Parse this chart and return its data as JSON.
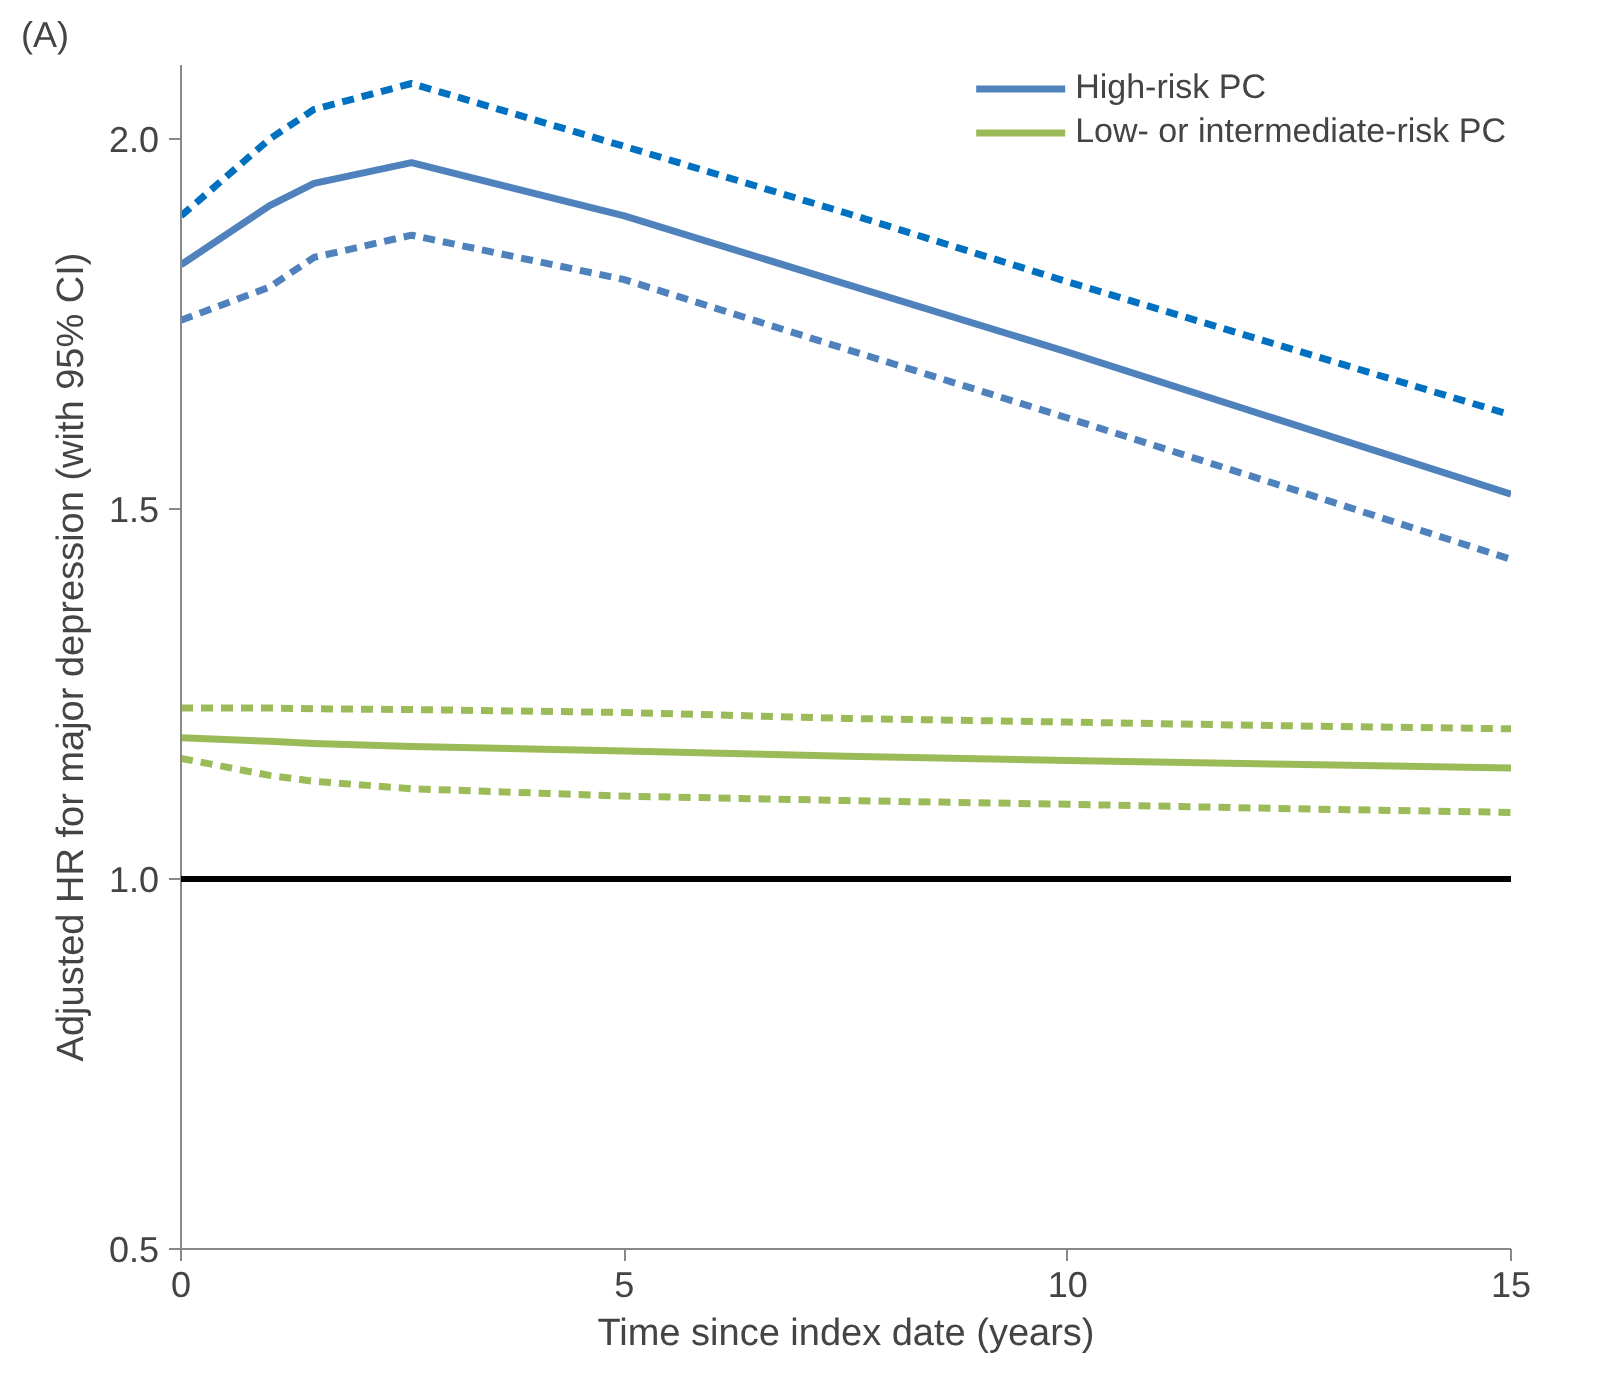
{
  "chart_data": {
    "type": "line",
    "xlabel": "Time since index date (years)",
    "ylabel": "Adjusted HR for major depression (with 95% CI)",
    "annotations": [
      "(A)"
    ],
    "xlim": [
      0,
      15
    ],
    "ylim": [
      0.5,
      2.1
    ],
    "xticks": [
      0,
      5,
      10,
      15
    ],
    "yticks": [
      {
        "value": 0.5,
        "label": "0.5"
      },
      {
        "value": 1.0,
        "label": "1.0"
      },
      {
        "value": 1.5,
        "label": "1.5"
      },
      {
        "value": 2.0,
        "label": "2.0"
      }
    ],
    "x": [
      0,
      1,
      1.5,
      2.6,
      5,
      7.5,
      10,
      12.5,
      15
    ],
    "series": [
      {
        "name": "High-risk PC",
        "color": "#4f81bd",
        "line_style": "solid",
        "values": [
          1.83,
          1.91,
          1.94,
          1.968,
          1.896,
          1.804,
          1.712,
          1.616,
          1.52
        ]
      },
      {
        "color": "#0070c0",
        "line_style": "dashed",
        "values": [
          1.896,
          2.0,
          2.04,
          2.075,
          1.99,
          1.9,
          1.807,
          1.717,
          1.627
        ]
      },
      {
        "color": "#4f81bd",
        "line_style": "dashed",
        "values": [
          1.755,
          1.8,
          1.84,
          1.87,
          1.81,
          1.716,
          1.623,
          1.528,
          1.432
        ]
      },
      {
        "name": "Low- or intermediate-risk PC",
        "color": "#9bbb59",
        "line_style": "solid",
        "values": [
          1.191,
          1.186,
          1.183,
          1.179,
          1.173,
          1.166,
          1.16,
          1.155,
          1.15
        ]
      },
      {
        "color": "#9bbb59",
        "line_style": "dashed",
        "values": [
          1.231,
          1.231,
          1.23,
          1.229,
          1.225,
          1.217,
          1.212,
          1.207,
          1.203
        ]
      },
      {
        "color": "#9bbb59",
        "line_style": "dashed",
        "values": [
          1.163,
          1.14,
          1.132,
          1.122,
          1.112,
          1.106,
          1.101,
          1.095,
          1.09
        ]
      }
    ],
    "ref_lines": [
      {
        "axis": "y",
        "value": 1.0,
        "color": "#000000",
        "line_style": "solid"
      }
    ],
    "legend": "top right",
    "grid": false
  }
}
